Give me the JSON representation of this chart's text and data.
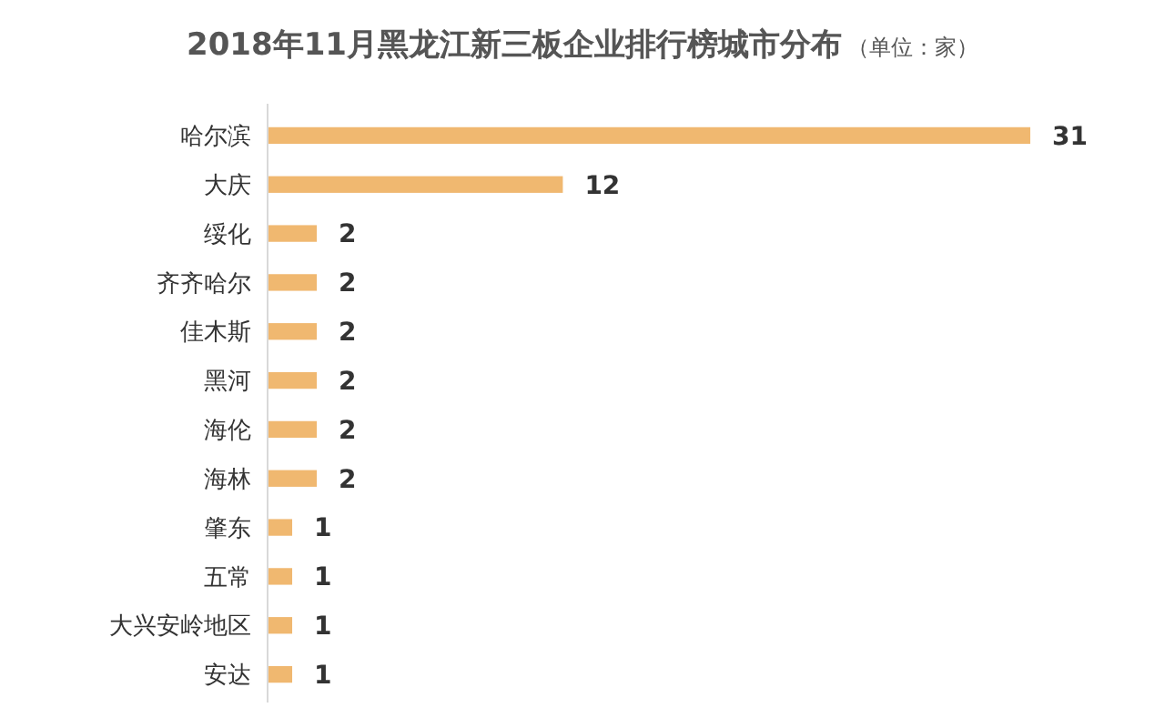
{
  "chart_data": {
    "type": "bar",
    "orientation": "horizontal",
    "title": "2018年11月黑龙江新三板企业排行榜城市分布",
    "subtitle": "（单位：家）",
    "categories": [
      "哈尔滨",
      "大庆",
      "绥化",
      "齐齐哈尔",
      "佳木斯",
      "黑河",
      "海伦",
      "海林",
      "肇东",
      "五常",
      "大兴安岭地区",
      "安达"
    ],
    "values": [
      31,
      12,
      2,
      2,
      2,
      2,
      2,
      2,
      1,
      1,
      1,
      1
    ],
    "color": "#f0b870",
    "xlim": [
      0,
      31
    ],
    "tick_labels": "y",
    "data_labels": true
  }
}
